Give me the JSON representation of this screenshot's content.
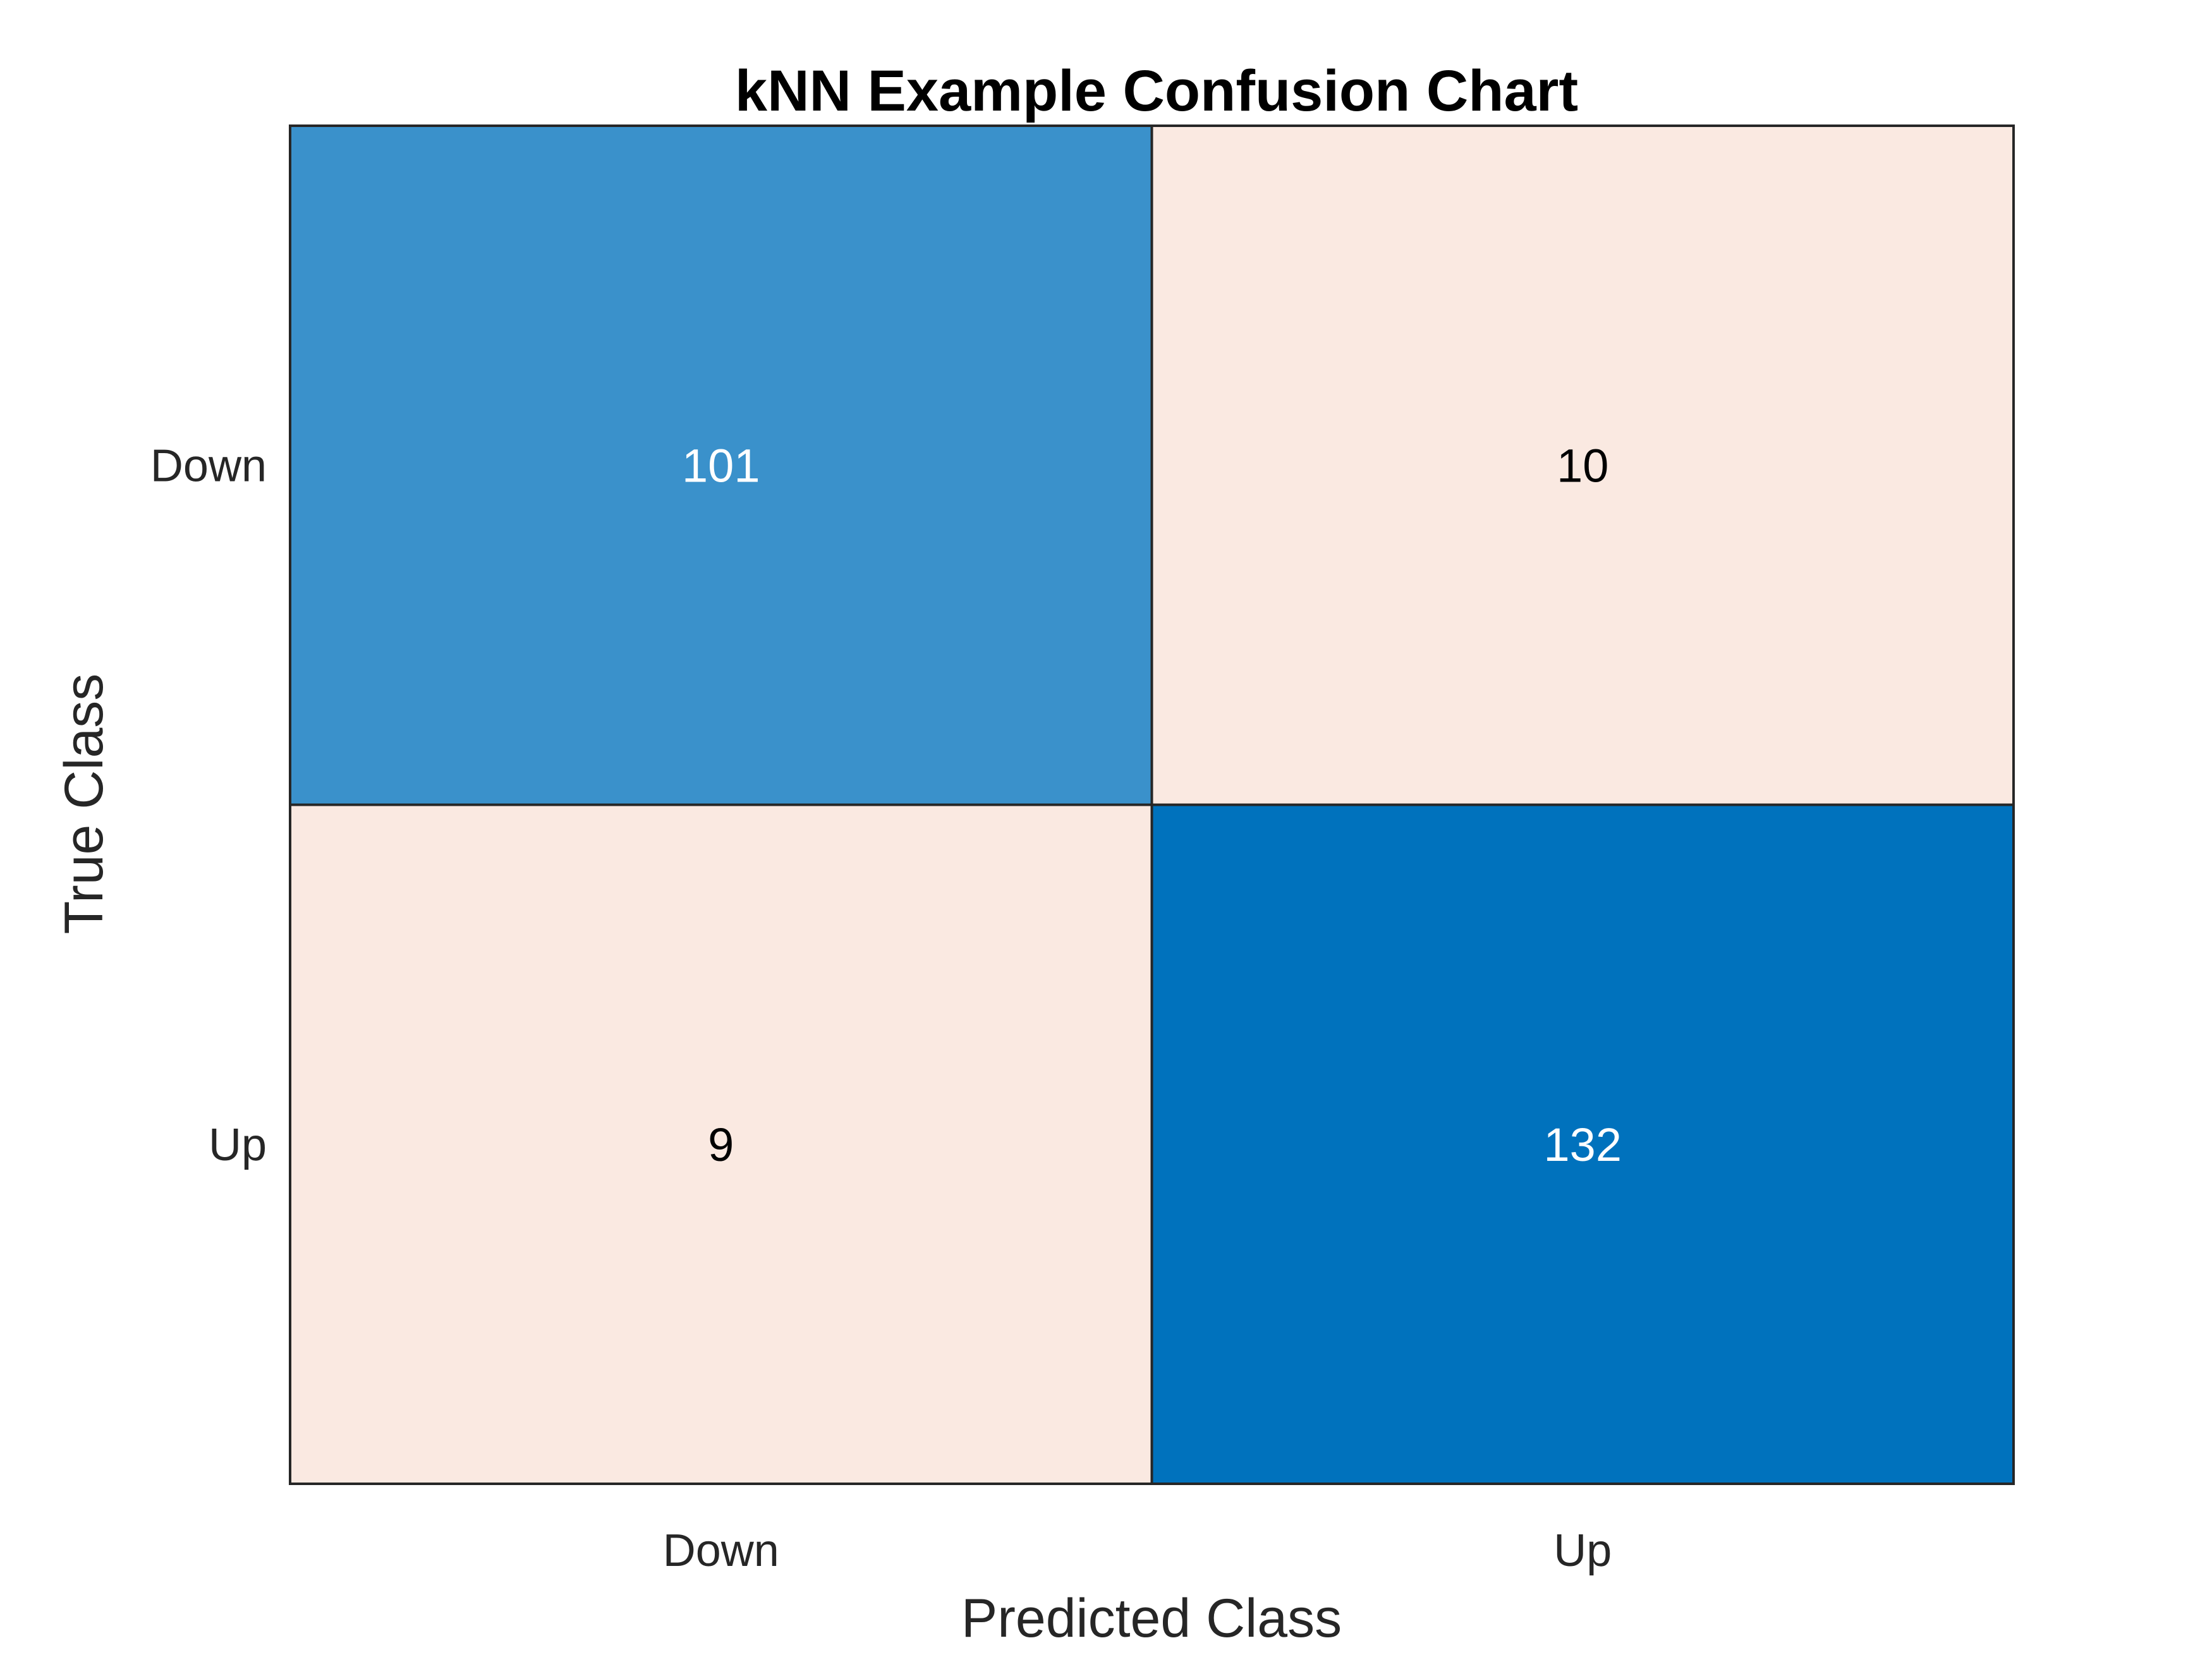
{
  "chart_data": {
    "type": "heatmap",
    "title": "kNN Example Confusion Chart",
    "xlabel": "Predicted Class",
    "ylabel": "True Class",
    "x_categories": [
      "Down",
      "Up"
    ],
    "y_categories": [
      "Down",
      "Up"
    ],
    "values": [
      [
        101,
        10
      ],
      [
        9,
        132
      ]
    ],
    "colors": {
      "diagonal_high": "#0072BD",
      "diagonal_low": "#3A91CB",
      "off_diagonal": "#FAE9E1",
      "border": "#262626",
      "text_on_dark": "#FFFFFF",
      "text_on_light": "#000000"
    },
    "grid": false,
    "legend": "none"
  }
}
